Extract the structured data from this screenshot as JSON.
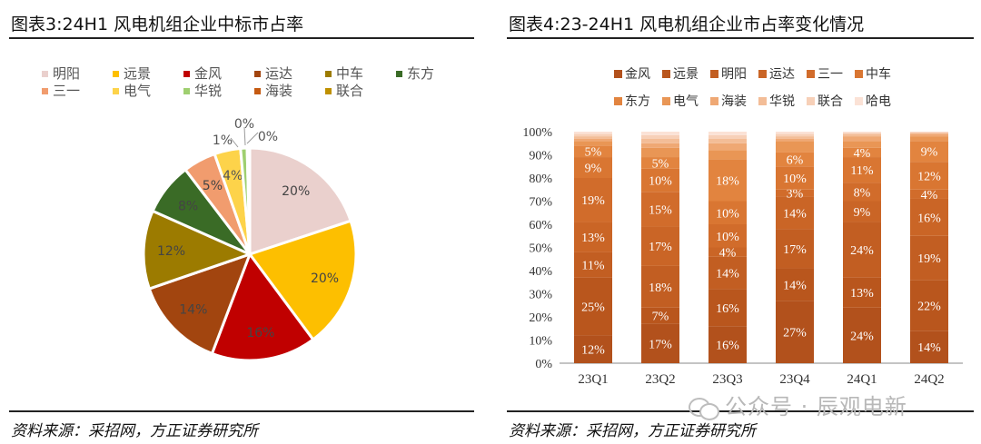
{
  "left": {
    "title": "图表3:24H1 风电机组企业中标市占率",
    "source": "资料来源：采招网，方正证券研究所"
  },
  "right": {
    "title": "图表4:23-24H1 风电机组企业市占率变化情况",
    "source": "资料来源：采招网，方正证券研究所"
  },
  "watermark": "公众号 · 辰观电新",
  "chart_data": [
    {
      "type": "pie",
      "title": "",
      "legend_position": "top",
      "legend": [
        "明阳",
        "远景",
        "金风",
        "运达",
        "中车",
        "东方",
        "三一",
        "电气",
        "华锐",
        "海装",
        "联合"
      ],
      "slices": [
        {
          "name": "明阳",
          "value": 20,
          "label": "20%",
          "color": "#ead0cd"
        },
        {
          "name": "远景",
          "value": 20,
          "label": "20%",
          "color": "#fdbf00"
        },
        {
          "name": "金风",
          "value": 16,
          "label": "16%",
          "color": "#c00000"
        },
        {
          "name": "运达",
          "value": 14,
          "label": "14%",
          "color": "#a2450f"
        },
        {
          "name": "中车",
          "value": 12,
          "label": "12%",
          "color": "#9c7b00"
        },
        {
          "name": "东方",
          "value": 8,
          "label": "8%",
          "color": "#3a6b26"
        },
        {
          "name": "三一",
          "value": 5,
          "label": "5%",
          "color": "#f19c6e"
        },
        {
          "name": "电气",
          "value": 4,
          "label": "4%",
          "color": "#fdd34a"
        },
        {
          "name": "华锐",
          "value": 1,
          "label": "1%",
          "color": "#9fcf70"
        },
        {
          "name": "海装",
          "value": 0.2,
          "label": "0%",
          "color": "#c55a11"
        },
        {
          "name": "联合",
          "value": 0.2,
          "label": "0%",
          "color": "#bf9000"
        }
      ]
    },
    {
      "type": "bar",
      "stacked": "percent",
      "title": "",
      "categories": [
        "23Q1",
        "23Q2",
        "23Q3",
        "23Q4",
        "24Q1",
        "24Q2"
      ],
      "ylim": [
        0,
        100
      ],
      "yticks": [
        "0%",
        "10%",
        "20%",
        "30%",
        "40%",
        "50%",
        "60%",
        "70%",
        "80%",
        "90%",
        "100%"
      ],
      "legend_position": "top",
      "legend": [
        "金风",
        "远景",
        "明阳",
        "运达",
        "三一",
        "中车",
        "东方",
        "电气",
        "海装",
        "华锐",
        "联合",
        "哈电"
      ],
      "series": [
        {
          "name": "金风",
          "color": "#b2511c",
          "values": [
            12,
            17,
            16,
            27,
            24,
            14
          ]
        },
        {
          "name": "远景",
          "color": "#b9561d",
          "values": [
            25,
            7,
            16,
            14,
            13,
            22
          ]
        },
        {
          "name": "明阳",
          "color": "#c25e22",
          "values": [
            11,
            18,
            14,
            17,
            24,
            19
          ]
        },
        {
          "name": "运达",
          "color": "#ca6526",
          "values": [
            13,
            17,
            4,
            14,
            9,
            16
          ]
        },
        {
          "name": "三一",
          "color": "#d16c2b",
          "values": [
            19,
            15,
            10,
            3,
            8,
            4
          ]
        },
        {
          "name": "中车",
          "color": "#d97632",
          "values": [
            9,
            10,
            10,
            10,
            11,
            12
          ]
        },
        {
          "name": "东方",
          "color": "#e2843f",
          "values": [
            5,
            5,
            18,
            6,
            4,
            9
          ]
        },
        {
          "name": "电气",
          "color": "#e99655",
          "values": [
            2,
            4,
            4,
            5,
            3,
            2
          ]
        },
        {
          "name": "海装",
          "color": "#efa874",
          "values": [
            1,
            2,
            3,
            1,
            2,
            1
          ]
        },
        {
          "name": "华锐",
          "color": "#f3bd97",
          "values": [
            1,
            2,
            2,
            1,
            1,
            0.5
          ]
        },
        {
          "name": "联合",
          "color": "#f7d0b8",
          "values": [
            1,
            1.5,
            1.5,
            1,
            0.5,
            0.3
          ]
        },
        {
          "name": "哈电",
          "color": "#fbe2d6",
          "values": [
            1,
            1.5,
            1.5,
            1,
            0.5,
            0.2
          ]
        }
      ],
      "labels": [
        [
          "12%",
          "25%",
          "11%",
          "13%",
          "19%",
          "9%",
          "5%"
        ],
        [
          "17%",
          "7%",
          "18%",
          "17%",
          "15%",
          "10%",
          "5%"
        ],
        [
          "16%",
          "16%",
          "14%",
          "4%",
          "10%",
          "10%",
          "18%"
        ],
        [
          "27%",
          "14%",
          "17%",
          "14%",
          "3%",
          "10%",
          "6%"
        ],
        [
          "24%",
          "13%",
          "24%",
          "9%",
          "8%",
          "11%",
          "4%"
        ],
        [
          "14%",
          "22%",
          "19%",
          "16%",
          "4%",
          "12%",
          "9%"
        ]
      ]
    }
  ]
}
